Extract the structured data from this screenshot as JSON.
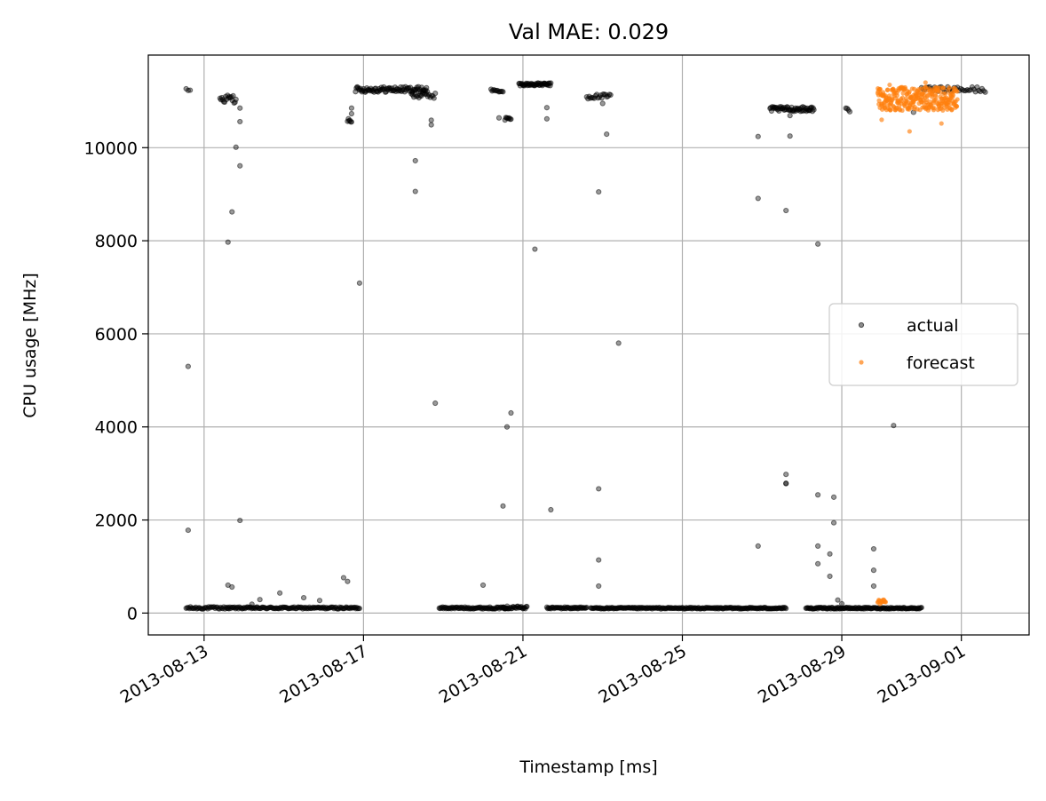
{
  "chart_data": {
    "type": "scatter",
    "title": "Val MAE: 0.029",
    "xlabel": "Timestamp [ms]",
    "ylabel": "CPU usage [MHz]",
    "xlim_days": [
      0,
      22.1
    ],
    "ylim": [
      -470,
      11990
    ],
    "x_ticks": [
      {
        "day": 1.4,
        "label": "2013-08-13"
      },
      {
        "day": 5.4,
        "label": "2013-08-17"
      },
      {
        "day": 9.4,
        "label": "2013-08-21"
      },
      {
        "day": 13.4,
        "label": "2013-08-25"
      },
      {
        "day": 17.4,
        "label": "2013-08-29"
      },
      {
        "day": 20.4,
        "label": "2013-09-01"
      }
    ],
    "y_ticks": [
      0,
      2000,
      4000,
      6000,
      8000,
      10000
    ],
    "grid": true,
    "legend_position": "center-right",
    "colors": {
      "actual": "#000000",
      "forecast": "#ff7f0e",
      "grid": "#b0b0b0"
    },
    "series": [
      {
        "name": "actual",
        "label": "actual",
        "color": "#000000",
        "dense_segments": [
          {
            "x0": 0.95,
            "x1": 1.05,
            "y": 11230,
            "jitter": 40,
            "n": 3
          },
          {
            "x0": 0.95,
            "x1": 2.0,
            "y": 110,
            "jitter": 25,
            "n": 40
          },
          {
            "x0": 1.8,
            "x1": 2.2,
            "y": 11050,
            "jitter": 90,
            "n": 18
          },
          {
            "x0": 2.0,
            "x1": 5.3,
            "y": 110,
            "jitter": 20,
            "n": 140
          },
          {
            "x0": 5.0,
            "x1": 5.1,
            "y": 10600,
            "jitter": 50,
            "n": 6
          },
          {
            "x0": 5.2,
            "x1": 7.0,
            "y": 11250,
            "jitter": 60,
            "n": 90
          },
          {
            "x0": 6.6,
            "x1": 7.2,
            "y": 11120,
            "jitter": 60,
            "n": 20
          },
          {
            "x0": 7.3,
            "x1": 9.0,
            "y": 110,
            "jitter": 20,
            "n": 80
          },
          {
            "x0": 8.6,
            "x1": 8.9,
            "y": 11230,
            "jitter": 30,
            "n": 12
          },
          {
            "x0": 8.9,
            "x1": 9.5,
            "y": 120,
            "jitter": 30,
            "n": 30
          },
          {
            "x0": 8.95,
            "x1": 9.1,
            "y": 10620,
            "jitter": 40,
            "n": 8
          },
          {
            "x0": 9.3,
            "x1": 10.1,
            "y": 11360,
            "jitter": 30,
            "n": 50
          },
          {
            "x0": 10.0,
            "x1": 11.0,
            "y": 110,
            "jitter": 20,
            "n": 50
          },
          {
            "x0": 11.0,
            "x1": 11.6,
            "y": 11100,
            "jitter": 50,
            "n": 20
          },
          {
            "x0": 11.1,
            "x1": 16.0,
            "y": 105,
            "jitter": 15,
            "n": 230
          },
          {
            "x0": 15.6,
            "x1": 16.7,
            "y": 10830,
            "jitter": 50,
            "n": 60
          },
          {
            "x0": 16.5,
            "x1": 19.4,
            "y": 105,
            "jitter": 15,
            "n": 150
          },
          {
            "x0": 17.5,
            "x1": 17.6,
            "y": 10800,
            "jitter": 50,
            "n": 4
          },
          {
            "x0": 19.4,
            "x1": 21.0,
            "y": 11250,
            "jitter": 60,
            "n": 40
          }
        ],
        "points": [
          [
            1.0,
            5300
          ],
          [
            1.0,
            1780
          ],
          [
            2.0,
            7970
          ],
          [
            2.1,
            8620
          ],
          [
            2.2,
            10010
          ],
          [
            2.3,
            9610
          ],
          [
            2.3,
            10560
          ],
          [
            2.3,
            10850
          ],
          [
            2.3,
            1990
          ],
          [
            2.0,
            600
          ],
          [
            2.1,
            560
          ],
          [
            2.6,
            190
          ],
          [
            2.8,
            290
          ],
          [
            3.3,
            430
          ],
          [
            3.9,
            330
          ],
          [
            4.3,
            270
          ],
          [
            4.9,
            760
          ],
          [
            5.0,
            680
          ],
          [
            5.3,
            7090
          ],
          [
            5.1,
            10730
          ],
          [
            5.1,
            10850
          ],
          [
            7.1,
            10590
          ],
          [
            7.1,
            10490
          ],
          [
            6.7,
            9720
          ],
          [
            6.7,
            9060
          ],
          [
            7.2,
            4510
          ],
          [
            8.8,
            10640
          ],
          [
            9.0,
            4000
          ],
          [
            9.1,
            4300
          ],
          [
            8.9,
            2300
          ],
          [
            8.4,
            600
          ],
          [
            9.7,
            7820
          ],
          [
            10.0,
            10860
          ],
          [
            10.0,
            10620
          ],
          [
            10.1,
            2220
          ],
          [
            11.4,
            10950
          ],
          [
            11.5,
            10290
          ],
          [
            11.3,
            9050
          ],
          [
            11.3,
            2670
          ],
          [
            11.3,
            1140
          ],
          [
            11.3,
            580
          ],
          [
            11.8,
            5800
          ],
          [
            15.3,
            8910
          ],
          [
            15.3,
            1440
          ],
          [
            15.3,
            10240
          ],
          [
            16.1,
            10250
          ],
          [
            16.1,
            10690
          ],
          [
            16.0,
            8650
          ],
          [
            16.0,
            2980
          ],
          [
            16.0,
            2790
          ],
          [
            16.0,
            2780
          ],
          [
            16.8,
            7930
          ],
          [
            16.8,
            2540
          ],
          [
            16.8,
            1440
          ],
          [
            16.8,
            1060
          ],
          [
            17.1,
            1270
          ],
          [
            17.2,
            2490
          ],
          [
            17.2,
            1940
          ],
          [
            17.1,
            790
          ],
          [
            17.3,
            280
          ],
          [
            17.4,
            200
          ],
          [
            18.2,
            1380
          ],
          [
            18.2,
            920
          ],
          [
            18.2,
            580
          ],
          [
            18.7,
            4030
          ],
          [
            19.2,
            10760
          ],
          [
            16.6,
            10800
          ]
        ]
      },
      {
        "name": "forecast",
        "label": "forecast",
        "color": "#ff7f0e",
        "dense_segments": [
          {
            "x0": 18.3,
            "x1": 20.3,
            "y": 11050,
            "jitter": 250,
            "n": 280
          },
          {
            "x0": 18.3,
            "x1": 18.5,
            "y": 240,
            "jitter": 50,
            "n": 15
          }
        ],
        "points": [
          [
            18.4,
            10600
          ],
          [
            19.1,
            10350
          ],
          [
            19.9,
            10520
          ],
          [
            18.6,
            11350
          ],
          [
            19.5,
            11400
          ]
        ]
      }
    ]
  }
}
